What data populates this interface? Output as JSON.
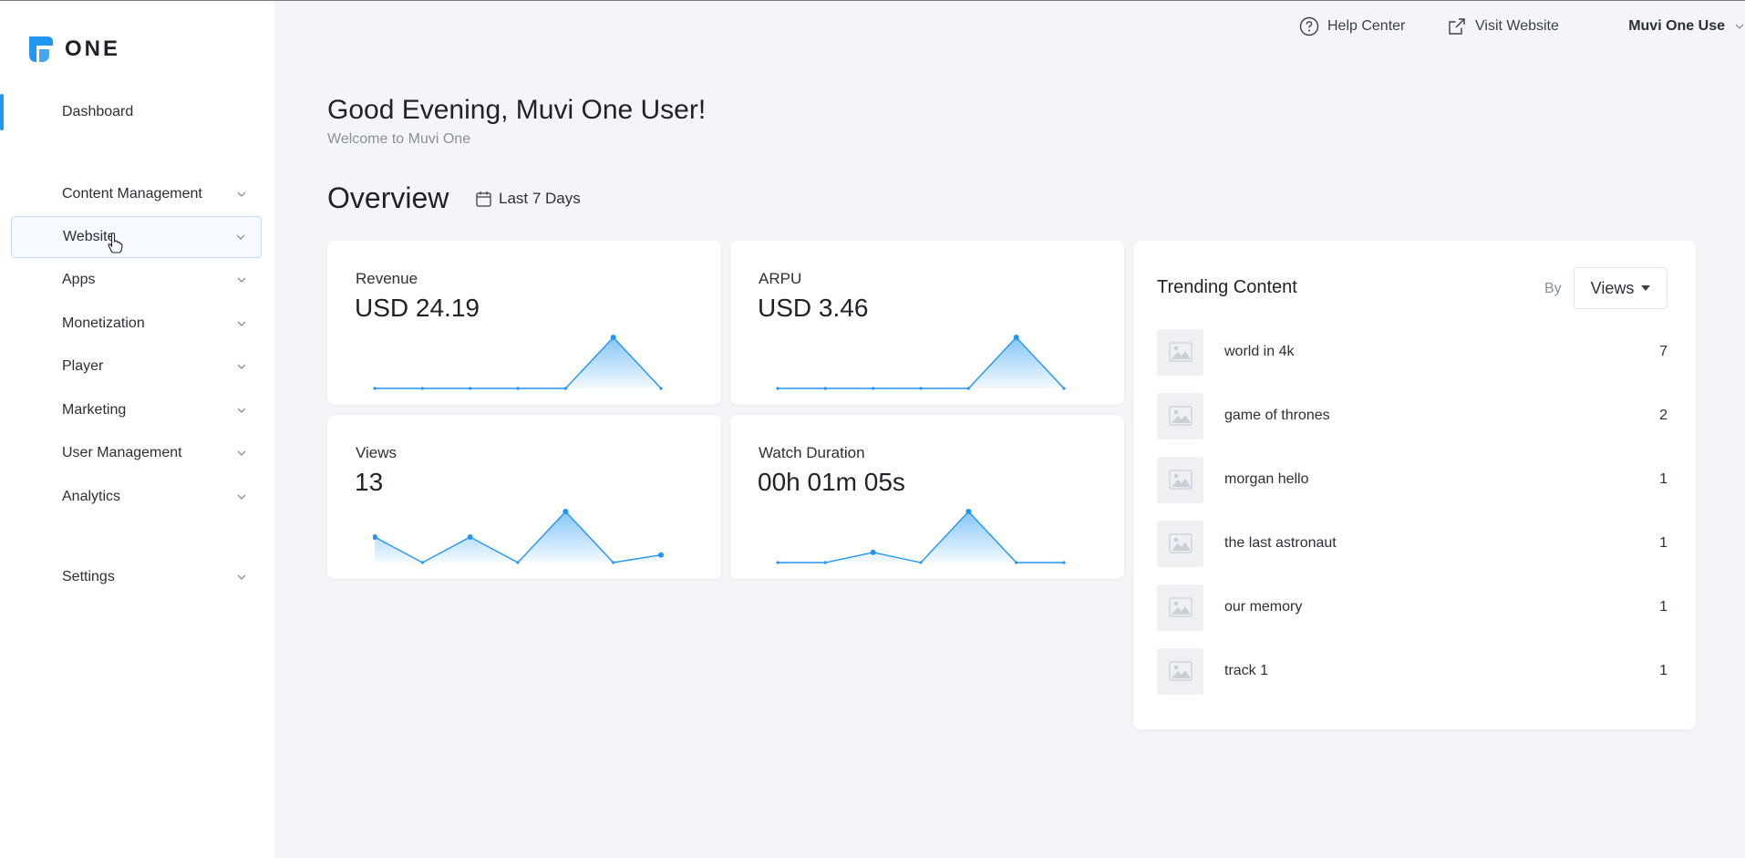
{
  "brand": {
    "logo_text": "ONE",
    "accent": "#2196f3"
  },
  "header": {
    "help_center": "Help Center",
    "visit_website": "Visit Website",
    "user_name": "Muvi One Use"
  },
  "sidebar": {
    "items": [
      {
        "label": "Dashboard"
      },
      {
        "label": "Content Management"
      },
      {
        "label": "Website"
      },
      {
        "label": "Apps"
      },
      {
        "label": "Monetization"
      },
      {
        "label": "Player"
      },
      {
        "label": "Marketing"
      },
      {
        "label": "User Management"
      },
      {
        "label": "Analytics"
      },
      {
        "label": "Settings"
      }
    ]
  },
  "main": {
    "greeting": "Good Evening, Muvi One User!",
    "welcome": "Welcome to Muvi One",
    "overview_title": "Overview",
    "date_range": "Last 7 Days"
  },
  "cards": [
    {
      "label": "Revenue",
      "value": "USD 24.19",
      "series": [
        0,
        0,
        0,
        0,
        0,
        1,
        0
      ]
    },
    {
      "label": "ARPU",
      "value": "USD 3.46",
      "series": [
        0,
        0,
        0,
        0,
        0,
        1,
        0
      ]
    },
    {
      "label": "Views",
      "value": "13",
      "series": [
        1,
        0,
        1,
        0,
        2,
        0,
        0.3
      ]
    },
    {
      "label": "Watch Duration",
      "value": "00h 01m 05s",
      "series": [
        0,
        0,
        0.2,
        0,
        1,
        0,
        0
      ]
    }
  ],
  "trending": {
    "title": "Trending Content",
    "by_label": "By",
    "sort_by": "Views",
    "items": [
      {
        "title": "world in 4k",
        "count": "7"
      },
      {
        "title": "game of thrones",
        "count": "2"
      },
      {
        "title": "morgan hello",
        "count": "1"
      },
      {
        "title": "the last astronaut",
        "count": "1"
      },
      {
        "title": "our memory",
        "count": "1"
      },
      {
        "title": "track 1",
        "count": "1"
      }
    ]
  }
}
